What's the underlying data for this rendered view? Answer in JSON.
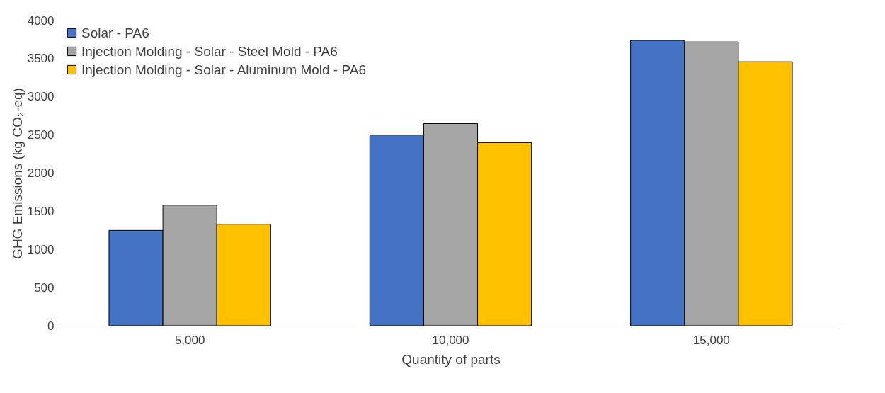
{
  "chart_data": {
    "type": "bar",
    "xlabel": "Quantity of parts",
    "ylabel": "GHG Emissions (kg CO₂-eq)",
    "categories": [
      "5,000",
      "10,000",
      "15,000"
    ],
    "series": [
      {
        "name": "Solar - PA6",
        "color": "#4472c4",
        "values": [
          1250,
          2500,
          3740
        ]
      },
      {
        "name": "Injection Molding - Solar - Steel Mold - PA6",
        "color": "#a5a5a5",
        "values": [
          1580,
          2650,
          3720
        ]
      },
      {
        "name": "Injection Molding - Solar - Aluminum Mold - PA6",
        "color": "#ffc000",
        "values": [
          1330,
          2400,
          3460
        ]
      }
    ],
    "ylim": [
      0,
      4000
    ],
    "yticks": [
      0,
      500,
      1000,
      1500,
      2000,
      2500,
      3000,
      3500,
      4000
    ],
    "grid": false,
    "legend": "top left"
  }
}
